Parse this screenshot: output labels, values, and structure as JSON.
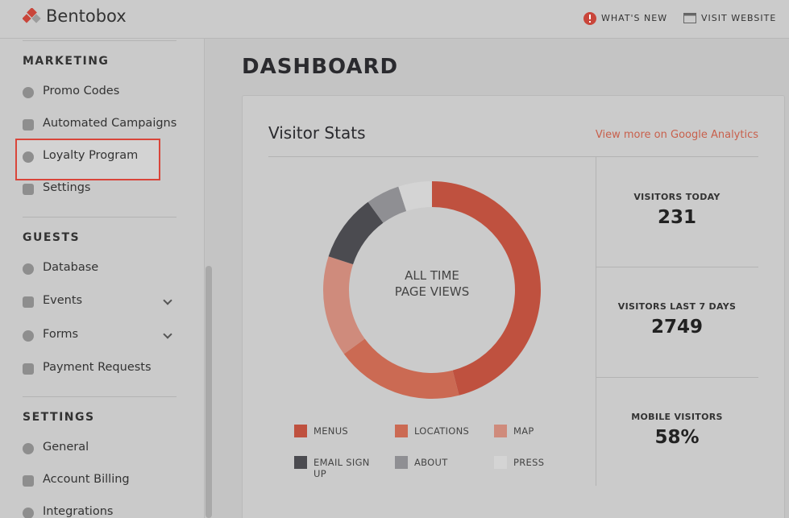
{
  "header": {
    "brand": "Bentobox",
    "links": [
      "WHAT'S NEW",
      "VISIT WEBSITE"
    ]
  },
  "sidebar": {
    "sections": [
      {
        "title": "MARKETING",
        "items": [
          "Promo Codes",
          "Automated Campaigns",
          "Loyalty Program",
          "Settings"
        ]
      },
      {
        "title": "GUESTS",
        "items": [
          "Database",
          "Events",
          "Forms",
          "Payment Requests"
        ]
      },
      {
        "title": "SETTINGS",
        "items": [
          "General",
          "Account Billing",
          "Integrations"
        ]
      }
    ]
  },
  "page_title": "DASHBOARD",
  "card": {
    "title": "Visitor Stats",
    "link": "View more on Google Analytics",
    "chart": {
      "type": "pie",
      "center_label": "ALL TIME PAGE VIEWS",
      "categories": [
        "MENUS",
        "LOCATIONS",
        "MAP",
        "EMAIL SIGN UP",
        "ABOUT",
        "PRESS"
      ],
      "values": [
        46,
        19,
        15,
        10,
        5,
        5
      ],
      "colors": [
        "#bf513f",
        "#cb6a53",
        "#cf8b7c",
        "#4b4b50",
        "#8f8f93",
        "#d4d4d4"
      ]
    },
    "stats": [
      {
        "label": "VISITORS TODAY",
        "value": "231"
      },
      {
        "label": "VISITORS LAST 7 DAYS",
        "value": "2749"
      },
      {
        "label": "MOBILE VISITORS",
        "value": "58%"
      }
    ]
  }
}
